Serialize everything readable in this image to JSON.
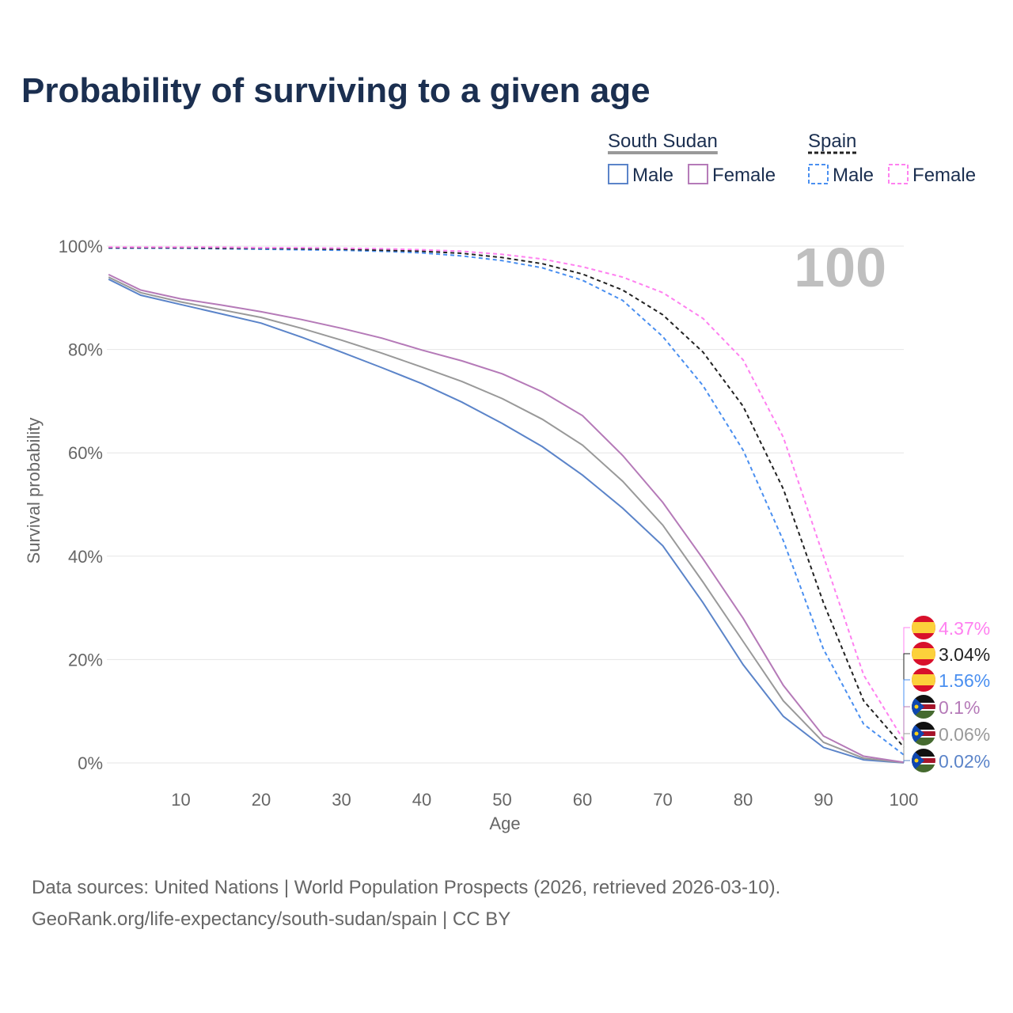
{
  "title": "Probability of surviving to a given age",
  "sources": [
    "Data sources: United Nations | World Population Prospects (2026, retrieved 2026-03-10).",
    "GeoRank.org/life-expectancy/south-sudan/spain | CC BY"
  ],
  "legend": {
    "groups": [
      {
        "name": "South Sudan",
        "color": "#999999",
        "items": [
          {
            "label": "Male",
            "color": "#5b84c9"
          },
          {
            "label": "Female",
            "color": "#b57ab8"
          }
        ]
      },
      {
        "name": "Spain",
        "color": "#222222",
        "items": [
          {
            "label": "Male",
            "color": "#4a8ff0"
          },
          {
            "label": "Female",
            "color": "#ff80f0"
          }
        ]
      }
    ]
  },
  "chart_data": {
    "type": "line",
    "title": "Probability of surviving to a given age",
    "xlabel": "Age",
    "ylabel": "Survival probability",
    "watermark_age": "100",
    "xlim": [
      0,
      100
    ],
    "ylim": [
      0,
      100
    ],
    "xticks": [
      "10",
      "20",
      "30",
      "40",
      "50",
      "60",
      "70",
      "80",
      "90",
      "100"
    ],
    "yticks": [
      "0%",
      "20%",
      "40%",
      "60%",
      "80%",
      "100%"
    ],
    "x": [
      1,
      5,
      10,
      15,
      20,
      25,
      30,
      35,
      40,
      45,
      50,
      55,
      60,
      65,
      70,
      75,
      80,
      85,
      90,
      95,
      100
    ],
    "series": [
      {
        "name": "Spain Female",
        "color": "#ff80f0",
        "dashed": true,
        "flag": "spain",
        "end_label": "4.37%",
        "values": [
          99.8,
          99.8,
          99.8,
          99.8,
          99.7,
          99.7,
          99.6,
          99.5,
          99.3,
          99.0,
          98.4,
          97.5,
          96,
          94,
          91,
          86,
          78,
          63,
          40,
          17,
          4.37
        ]
      },
      {
        "name": "Spain",
        "color": "#222222",
        "dashed": true,
        "flag": "spain",
        "end_label": "3.04%",
        "values": [
          99.7,
          99.7,
          99.7,
          99.6,
          99.6,
          99.5,
          99.4,
          99.2,
          99.0,
          98.6,
          97.8,
          96.6,
          94.6,
          91.5,
          86.7,
          79.5,
          69,
          53,
          31,
          12,
          3.04
        ]
      },
      {
        "name": "Spain Male",
        "color": "#4a8ff0",
        "dashed": true,
        "flag": "spain",
        "end_label": "1.56%",
        "values": [
          99.6,
          99.6,
          99.6,
          99.5,
          99.4,
          99.3,
          99.2,
          99.0,
          98.7,
          98.1,
          97.2,
          95.8,
          93.4,
          89.5,
          82.5,
          73,
          60.5,
          43,
          22,
          7.5,
          1.56
        ]
      },
      {
        "name": "South Sudan Female",
        "color": "#b57ab8",
        "dashed": false,
        "flag": "south-sudan",
        "end_label": "0.1%",
        "values": [
          94.5,
          91.5,
          89.8,
          88.6,
          87.3,
          85.8,
          84.1,
          82.2,
          79.9,
          77.8,
          75.3,
          71.8,
          67.2,
          59.5,
          50.4,
          39.5,
          28,
          15,
          5.2,
          1.3,
          0.1
        ]
      },
      {
        "name": "South Sudan",
        "color": "#999999",
        "dashed": false,
        "flag": "south-sudan",
        "end_label": "0.06%",
        "values": [
          94,
          91,
          89.2,
          87.7,
          86.2,
          84.1,
          81.8,
          79.3,
          76.6,
          73.8,
          70.5,
          66.5,
          61.5,
          54.5,
          46,
          35,
          23.5,
          12,
          4,
          0.9,
          0.06
        ]
      },
      {
        "name": "South Sudan Male",
        "color": "#5b84c9",
        "dashed": false,
        "flag": "south-sudan",
        "end_label": "0.02%",
        "values": [
          93.6,
          90.5,
          88.7,
          86.9,
          85.1,
          82.4,
          79.5,
          76.5,
          73.4,
          69.8,
          65.7,
          61.2,
          55.7,
          49.3,
          42,
          31,
          19,
          9,
          3,
          0.6,
          0.02
        ]
      }
    ]
  }
}
